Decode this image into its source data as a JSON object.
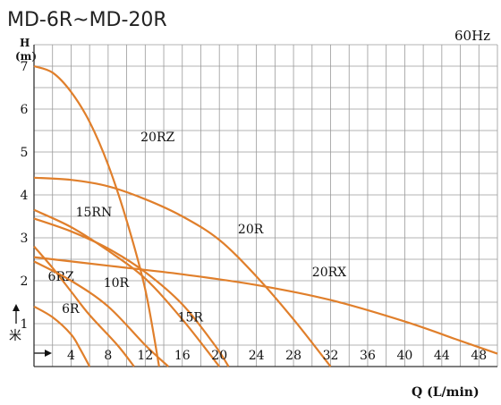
{
  "chart_data": {
    "type": "line",
    "title": "MD-6R~MD-20R",
    "frequency": "60Hz",
    "ylabel_letter": "H",
    "ylabel_unit": "(m)",
    "ylabel_alt": "米",
    "xlabel": "Q (L/min)",
    "xlim": [
      0,
      50
    ],
    "ylim": [
      0,
      7.5
    ],
    "grid": true,
    "x_ticks": [
      "4",
      "8",
      "12",
      "16",
      "20",
      "24",
      "28",
      "32",
      "36",
      "40",
      "44",
      "48"
    ],
    "y_ticks": [
      "1",
      "2",
      "3",
      "4",
      "5",
      "6",
      "7"
    ],
    "series": [
      {
        "name": "6R",
        "x": [
          0,
          2,
          4,
          5,
          6
        ],
        "y": [
          1.4,
          1.15,
          0.75,
          0.4,
          0
        ]
      },
      {
        "name": "6RZ",
        "x": [
          0,
          2,
          4,
          6,
          9,
          10.8
        ],
        "y": [
          2.8,
          2.3,
          1.75,
          1.2,
          0.5,
          0
        ]
      },
      {
        "name": "10R",
        "x": [
          0,
          4,
          8,
          12,
          14.5
        ],
        "y": [
          2.45,
          2.0,
          1.4,
          0.5,
          0
        ]
      },
      {
        "name": "15RN",
        "x": [
          0,
          4,
          8,
          12,
          16,
          20
        ],
        "y": [
          3.65,
          3.25,
          2.7,
          2.05,
          1.1,
          0
        ]
      },
      {
        "name": "15R",
        "x": [
          0,
          4,
          8,
          12,
          16,
          19.5,
          21
        ],
        "y": [
          3.45,
          3.15,
          2.75,
          2.2,
          1.45,
          0.5,
          0
        ]
      },
      {
        "name": "20RZ",
        "x": [
          0,
          2,
          4,
          6,
          8,
          10,
          12,
          13.5
        ],
        "y": [
          7.0,
          6.85,
          6.4,
          5.7,
          4.7,
          3.4,
          1.8,
          0
        ]
      },
      {
        "name": "20R",
        "x": [
          0,
          4,
          8,
          12,
          16,
          20,
          24,
          28,
          32
        ],
        "y": [
          4.4,
          4.35,
          4.2,
          3.9,
          3.5,
          2.95,
          2.1,
          1.1,
          0
        ]
      },
      {
        "name": "20RX",
        "x": [
          0,
          8,
          16,
          24,
          32,
          40,
          46,
          50
        ],
        "y": [
          2.55,
          2.35,
          2.15,
          1.9,
          1.55,
          1.05,
          0.6,
          0.3
        ]
      }
    ],
    "line_color": "#E07F2B",
    "grid_color": "#9a9a9a"
  }
}
